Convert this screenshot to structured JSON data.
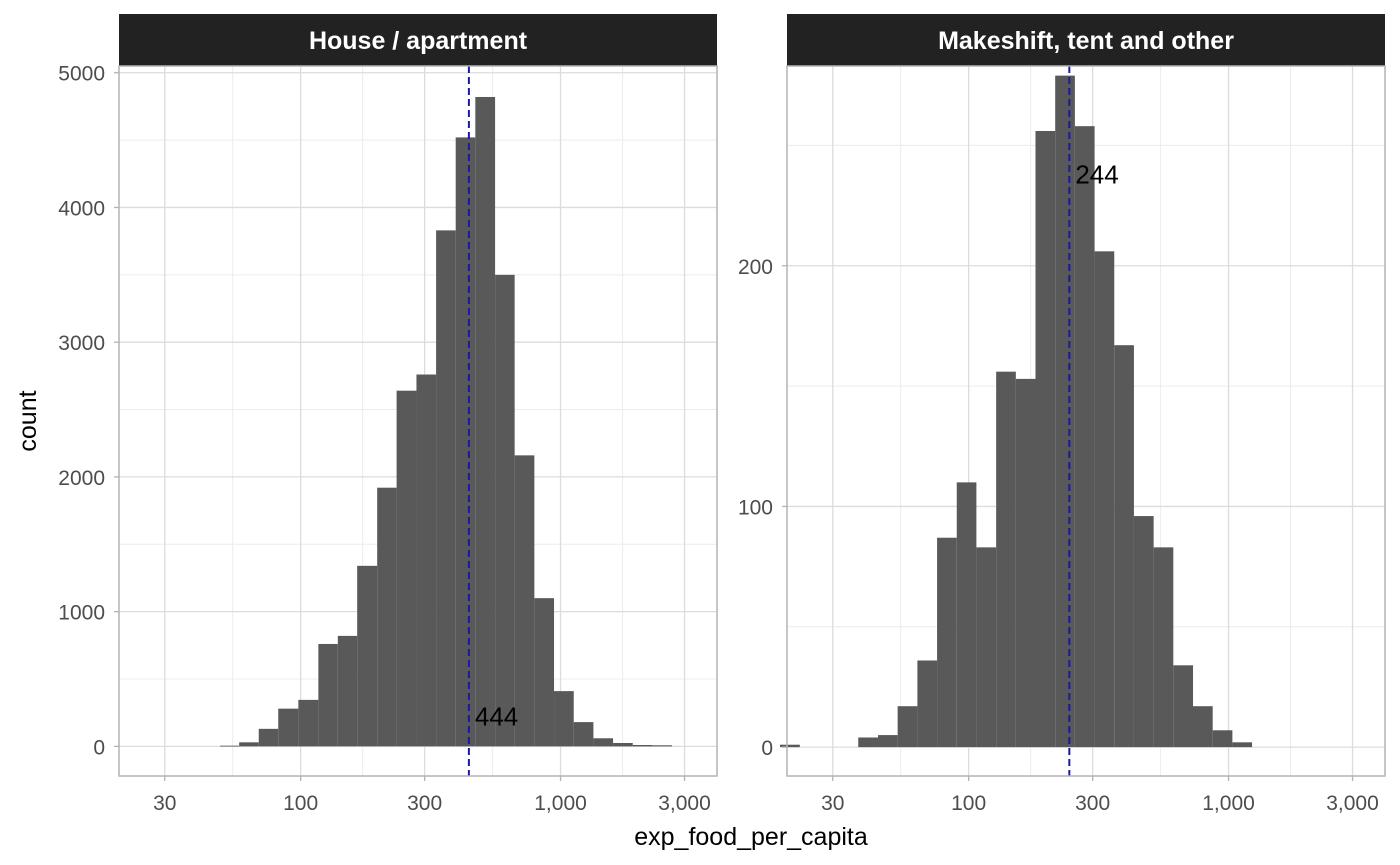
{
  "chart_data": {
    "type": "histogram",
    "x_scale": "log10",
    "xlabel": "exp_food_per_capita",
    "ylabel": "count",
    "x_range": [
      20,
      4000
    ],
    "x_tick_values": [
      30,
      100,
      300,
      1000,
      3000
    ],
    "x_tick_labels": [
      "30",
      "100",
      "300",
      "1,000",
      "3,000"
    ],
    "bar_color": "#595959",
    "median_line_color": "#1a1aa0",
    "strip_color": "#222222",
    "panels": [
      {
        "title": "House / apartment",
        "ylim": [
          -220,
          5050
        ],
        "y_ticks": [
          0,
          1000,
          2000,
          3000,
          4000,
          5000
        ],
        "y_tick_labels": [
          "0",
          "1000",
          "2000",
          "3000",
          "4000",
          "5000"
        ],
        "y_minor": [
          500,
          1500,
          2500,
          3500,
          4500
        ],
        "bins": [
          {
            "x0": 49,
            "x1": 58,
            "count": 5
          },
          {
            "x0": 58,
            "x1": 69,
            "count": 30
          },
          {
            "x0": 69,
            "x1": 82,
            "count": 130
          },
          {
            "x0": 82,
            "x1": 98,
            "count": 280
          },
          {
            "x0": 98,
            "x1": 117,
            "count": 345
          },
          {
            "x0": 117,
            "x1": 139,
            "count": 760
          },
          {
            "x0": 139,
            "x1": 165,
            "count": 820
          },
          {
            "x0": 165,
            "x1": 197,
            "count": 1340
          },
          {
            "x0": 197,
            "x1": 234,
            "count": 1920
          },
          {
            "x0": 234,
            "x1": 279,
            "count": 2640
          },
          {
            "x0": 279,
            "x1": 332,
            "count": 2760
          },
          {
            "x0": 332,
            "x1": 395,
            "count": 3830
          },
          {
            "x0": 395,
            "x1": 470,
            "count": 4520
          },
          {
            "x0": 470,
            "x1": 560,
            "count": 4820
          },
          {
            "x0": 560,
            "x1": 666,
            "count": 3500
          },
          {
            "x0": 666,
            "x1": 793,
            "count": 2160
          },
          {
            "x0": 793,
            "x1": 944,
            "count": 1100
          },
          {
            "x0": 944,
            "x1": 1124,
            "count": 410
          },
          {
            "x0": 1124,
            "x1": 1338,
            "count": 180
          },
          {
            "x0": 1338,
            "x1": 1593,
            "count": 60
          },
          {
            "x0": 1593,
            "x1": 1896,
            "count": 25
          },
          {
            "x0": 1896,
            "x1": 2257,
            "count": 10
          },
          {
            "x0": 2257,
            "x1": 2687,
            "count": 8
          }
        ],
        "median": 444,
        "median_label": "444",
        "label_at_count": 220
      },
      {
        "title": "Makeshift, tent and other",
        "ylim": [
          -12,
          283
        ],
        "y_ticks": [
          0,
          100,
          200
        ],
        "y_tick_labels": [
          "0",
          "100",
          "200"
        ],
        "y_minor": [
          50,
          150,
          250
        ],
        "bins": [
          {
            "x0": 18.8,
            "x1": 22.4,
            "count": 1
          },
          {
            "x0": 37.6,
            "x1": 44.8,
            "count": 4
          },
          {
            "x0": 44.8,
            "x1": 53.3,
            "count": 5
          },
          {
            "x0": 53.3,
            "x1": 63.5,
            "count": 17
          },
          {
            "x0": 63.5,
            "x1": 75.6,
            "count": 36
          },
          {
            "x0": 75.6,
            "x1": 90.0,
            "count": 87
          },
          {
            "x0": 90.0,
            "x1": 107.1,
            "count": 110
          },
          {
            "x0": 107.1,
            "x1": 127.6,
            "count": 83
          },
          {
            "x0": 127.6,
            "x1": 151.9,
            "count": 156
          },
          {
            "x0": 151.9,
            "x1": 180.8,
            "count": 153
          },
          {
            "x0": 180.8,
            "x1": 215.3,
            "count": 256
          },
          {
            "x0": 215.3,
            "x1": 256.3,
            "count": 279
          },
          {
            "x0": 256.3,
            "x1": 305.2,
            "count": 258
          },
          {
            "x0": 305.2,
            "x1": 363.3,
            "count": 206
          },
          {
            "x0": 363.3,
            "x1": 432.5,
            "count": 167
          },
          {
            "x0": 432.5,
            "x1": 515.0,
            "count": 96
          },
          {
            "x0": 515.0,
            "x1": 613.1,
            "count": 83
          },
          {
            "x0": 613.1,
            "x1": 730.0,
            "count": 34
          },
          {
            "x0": 730.0,
            "x1": 869.0,
            "count": 17
          },
          {
            "x0": 869.0,
            "x1": 1034.6,
            "count": 7
          },
          {
            "x0": 1034.6,
            "x1": 1231.7,
            "count": 2
          }
        ],
        "median": 244,
        "median_label": "244",
        "label_at_count": 238
      }
    ]
  }
}
